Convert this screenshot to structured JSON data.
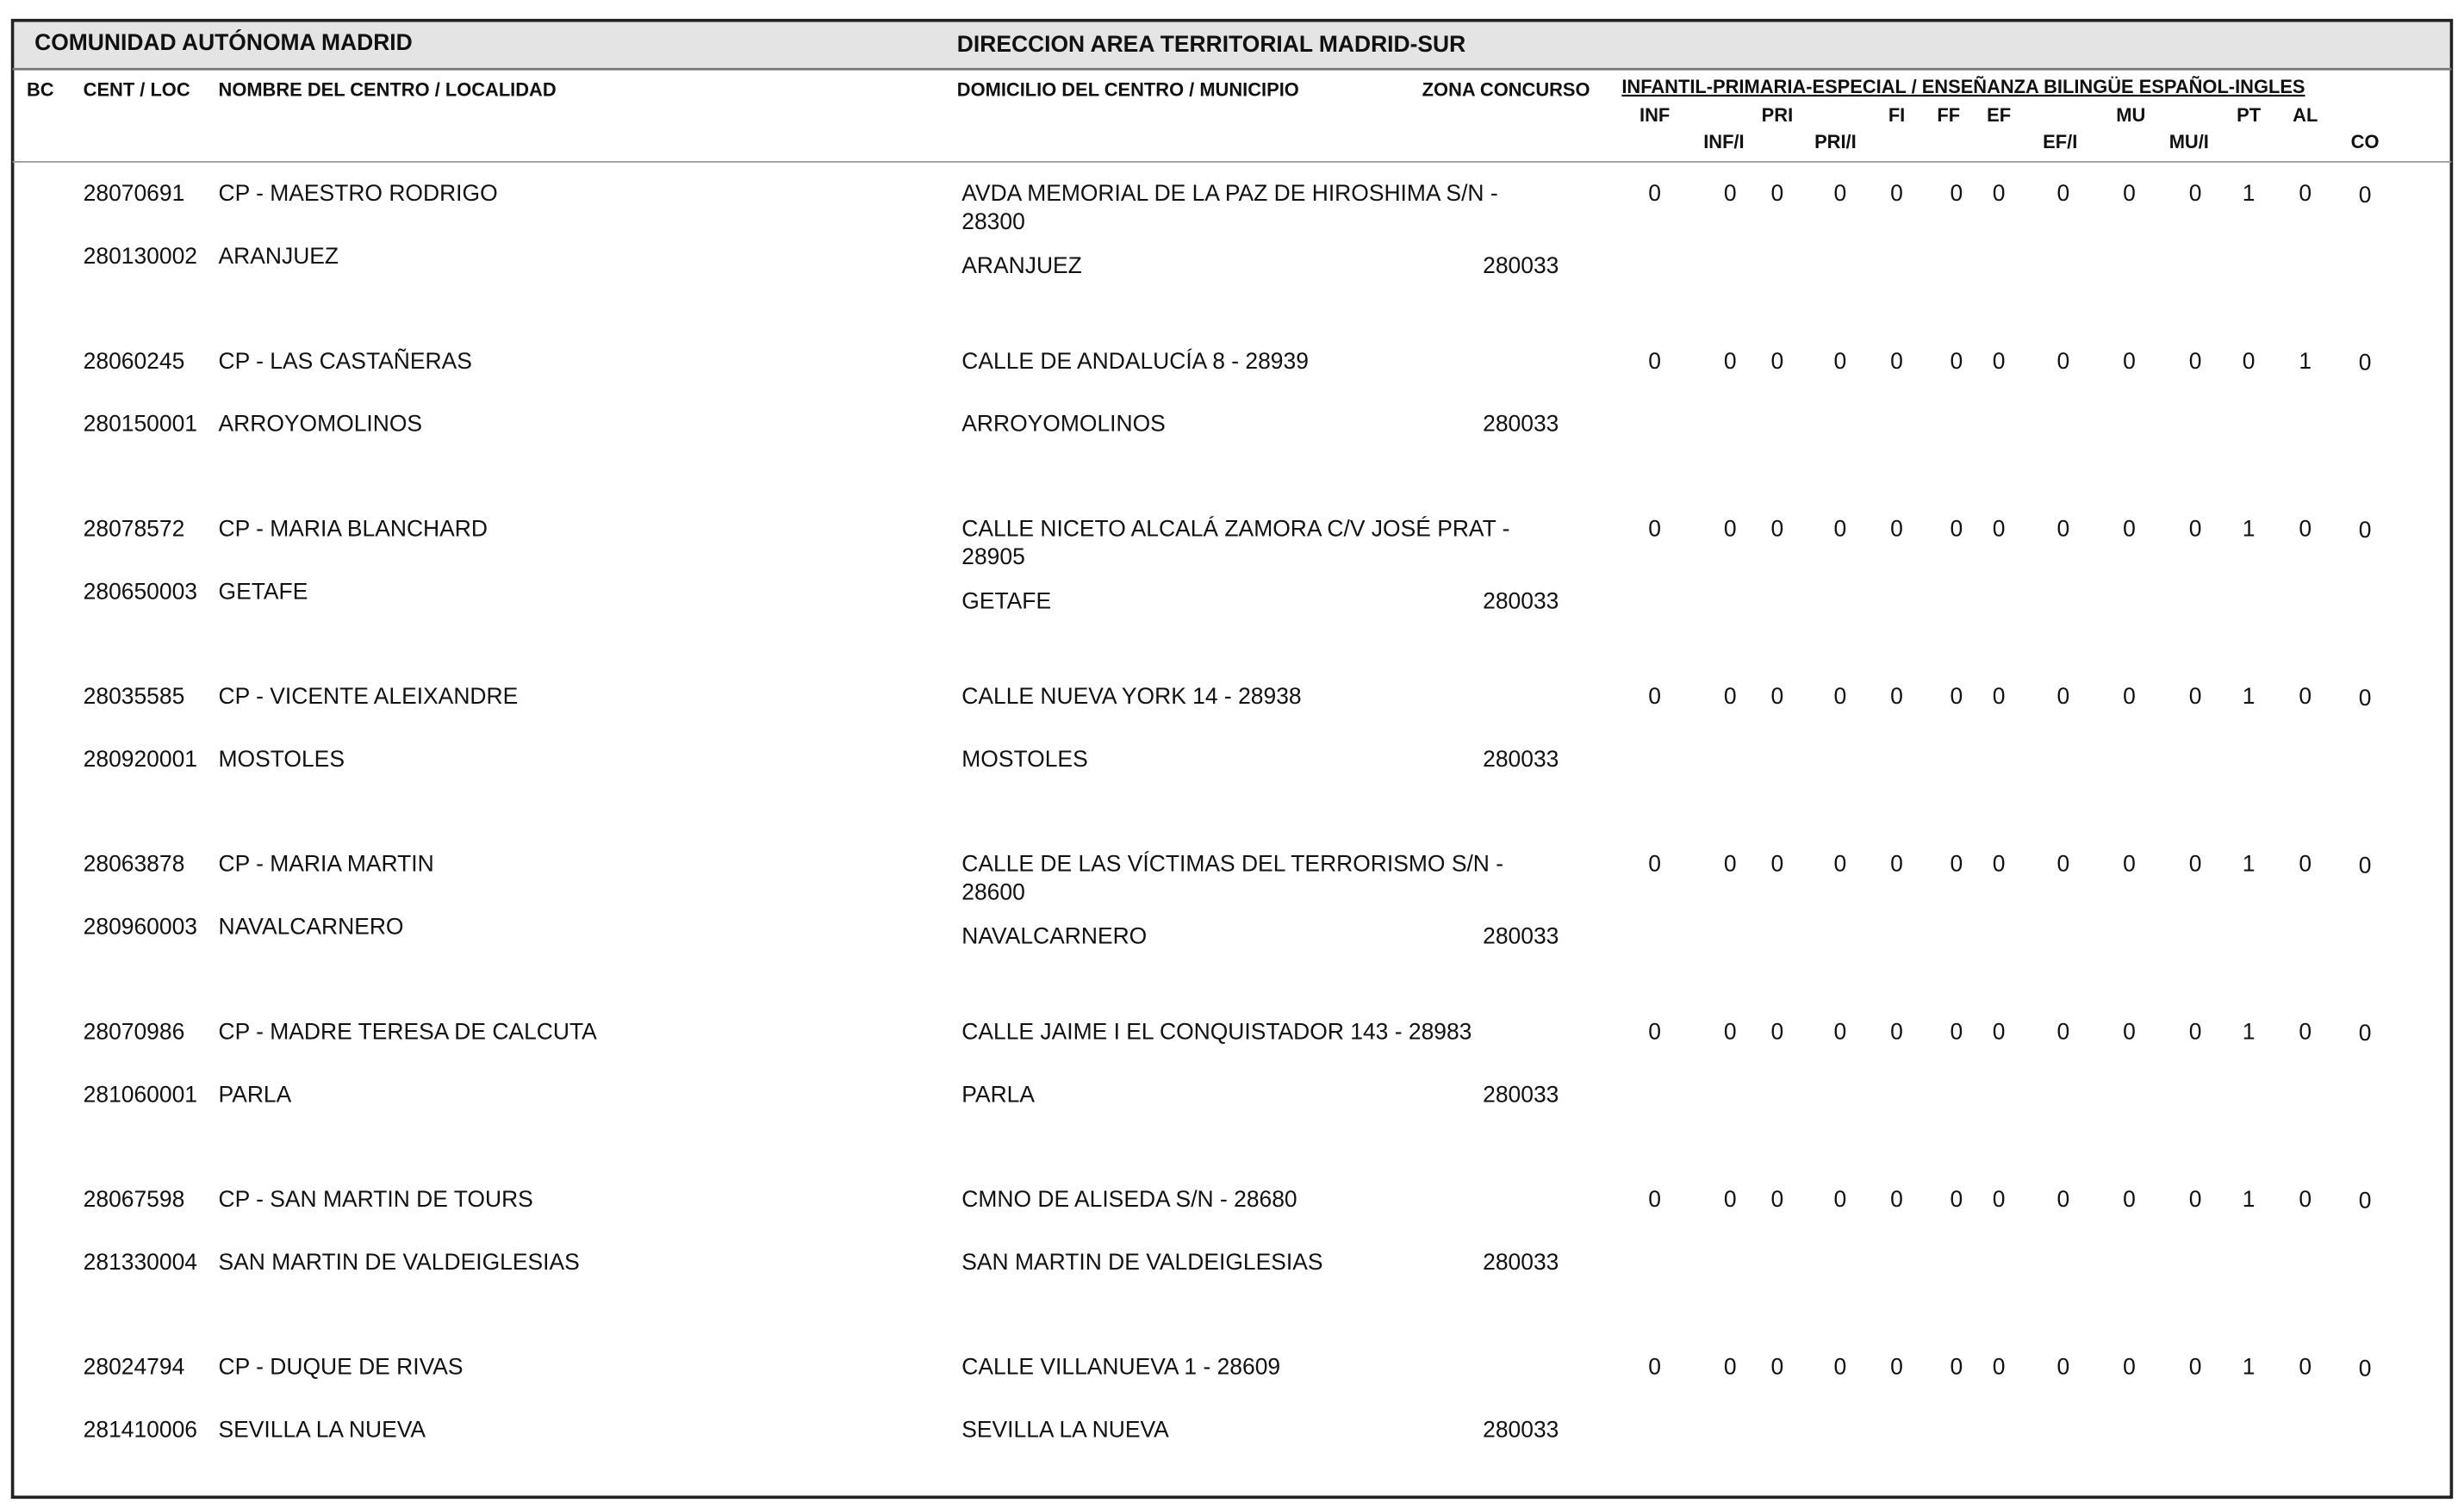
{
  "header": {
    "left": "COMUNIDAD AUTÓNOMA MADRID",
    "right": "DIRECCION AREA TERRITORIAL MADRID-SUR"
  },
  "columns": {
    "bc": "BC",
    "cent": "CENT / LOC",
    "nombre": "NOMBRE DEL CENTRO / LOCALIDAD",
    "domicilio": "DOMICILIO DEL CENTRO / MUNICIPIO",
    "zona": "ZONA CONCURSO",
    "group": "INFANTIL-PRIMARIA-ESPECIAL / ENSEÑANZA BILINGÜE ESPAÑOL-INGLES",
    "sub": [
      "INF",
      "INF/I",
      "PRI",
      "PRI/I",
      "FI",
      "FF",
      "EF",
      "EF/I",
      "MU",
      "MU/I",
      "PT",
      "AL",
      "CO"
    ]
  },
  "rows": [
    {
      "code": "28070691",
      "name": "CP - MAESTRO RODRIGO",
      "loc_code": "280130002",
      "loc": "ARANJUEZ",
      "address": [
        "AVDA MEMORIAL DE LA PAZ DE HIROSHIMA S/N -",
        "28300"
      ],
      "municipio": "ARANJUEZ",
      "zona": "280033",
      "values": [
        0,
        0,
        0,
        0,
        0,
        0,
        0,
        0,
        0,
        0,
        1,
        0,
        0
      ]
    },
    {
      "code": "28060245",
      "name": "CP - LAS CASTAÑERAS",
      "loc_code": "280150001",
      "loc": "ARROYOMOLINOS",
      "address": [
        "CALLE DE ANDALUCÍA 8 - 28939"
      ],
      "municipio": "ARROYOMOLINOS",
      "zona": "280033",
      "values": [
        0,
        0,
        0,
        0,
        0,
        0,
        0,
        0,
        0,
        0,
        0,
        1,
        0
      ]
    },
    {
      "code": "28078572",
      "name": "CP - MARIA BLANCHARD",
      "loc_code": "280650003",
      "loc": "GETAFE",
      "address": [
        "CALLE NICETO ALCALÁ ZAMORA C/V JOSÉ PRAT  -",
        "28905"
      ],
      "municipio": "GETAFE",
      "zona": "280033",
      "values": [
        0,
        0,
        0,
        0,
        0,
        0,
        0,
        0,
        0,
        0,
        1,
        0,
        0
      ]
    },
    {
      "code": "28035585",
      "name": "CP - VICENTE ALEIXANDRE",
      "loc_code": "280920001",
      "loc": "MOSTOLES",
      "address": [
        "CALLE NUEVA YORK 14 - 28938"
      ],
      "municipio": "MOSTOLES",
      "zona": "280033",
      "values": [
        0,
        0,
        0,
        0,
        0,
        0,
        0,
        0,
        0,
        0,
        1,
        0,
        0
      ]
    },
    {
      "code": "28063878",
      "name": "CP - MARIA MARTIN",
      "loc_code": "280960003",
      "loc": "NAVALCARNERO",
      "address": [
        "CALLE DE LAS VÍCTIMAS DEL TERRORISMO S/N -",
        "28600"
      ],
      "municipio": "NAVALCARNERO",
      "zona": "280033",
      "values": [
        0,
        0,
        0,
        0,
        0,
        0,
        0,
        0,
        0,
        0,
        1,
        0,
        0
      ]
    },
    {
      "code": "28070986",
      "name": "CP - MADRE TERESA DE CALCUTA",
      "loc_code": "281060001",
      "loc": "PARLA",
      "address": [
        "CALLE JAIME I EL CONQUISTADOR 143 - 28983"
      ],
      "municipio": "PARLA",
      "zona": "280033",
      "values": [
        0,
        0,
        0,
        0,
        0,
        0,
        0,
        0,
        0,
        0,
        1,
        0,
        0
      ]
    },
    {
      "code": "28067598",
      "name": "CP - SAN MARTIN DE TOURS",
      "loc_code": "281330004",
      "loc": "SAN MARTIN DE VALDEIGLESIAS",
      "address": [
        "CMNO DE ALISEDA S/N - 28680"
      ],
      "municipio": "SAN MARTIN DE VALDEIGLESIAS",
      "zona": "280033",
      "values": [
        0,
        0,
        0,
        0,
        0,
        0,
        0,
        0,
        0,
        0,
        1,
        0,
        0
      ]
    },
    {
      "code": "28024794",
      "name": "CP - DUQUE DE RIVAS",
      "loc_code": "281410006",
      "loc": "SEVILLA LA NUEVA",
      "address": [
        "CALLE VILLANUEVA 1 - 28609"
      ],
      "municipio": "SEVILLA LA NUEVA",
      "zona": "280033",
      "values": [
        0,
        0,
        0,
        0,
        0,
        0,
        0,
        0,
        0,
        0,
        1,
        0,
        0
      ]
    }
  ]
}
